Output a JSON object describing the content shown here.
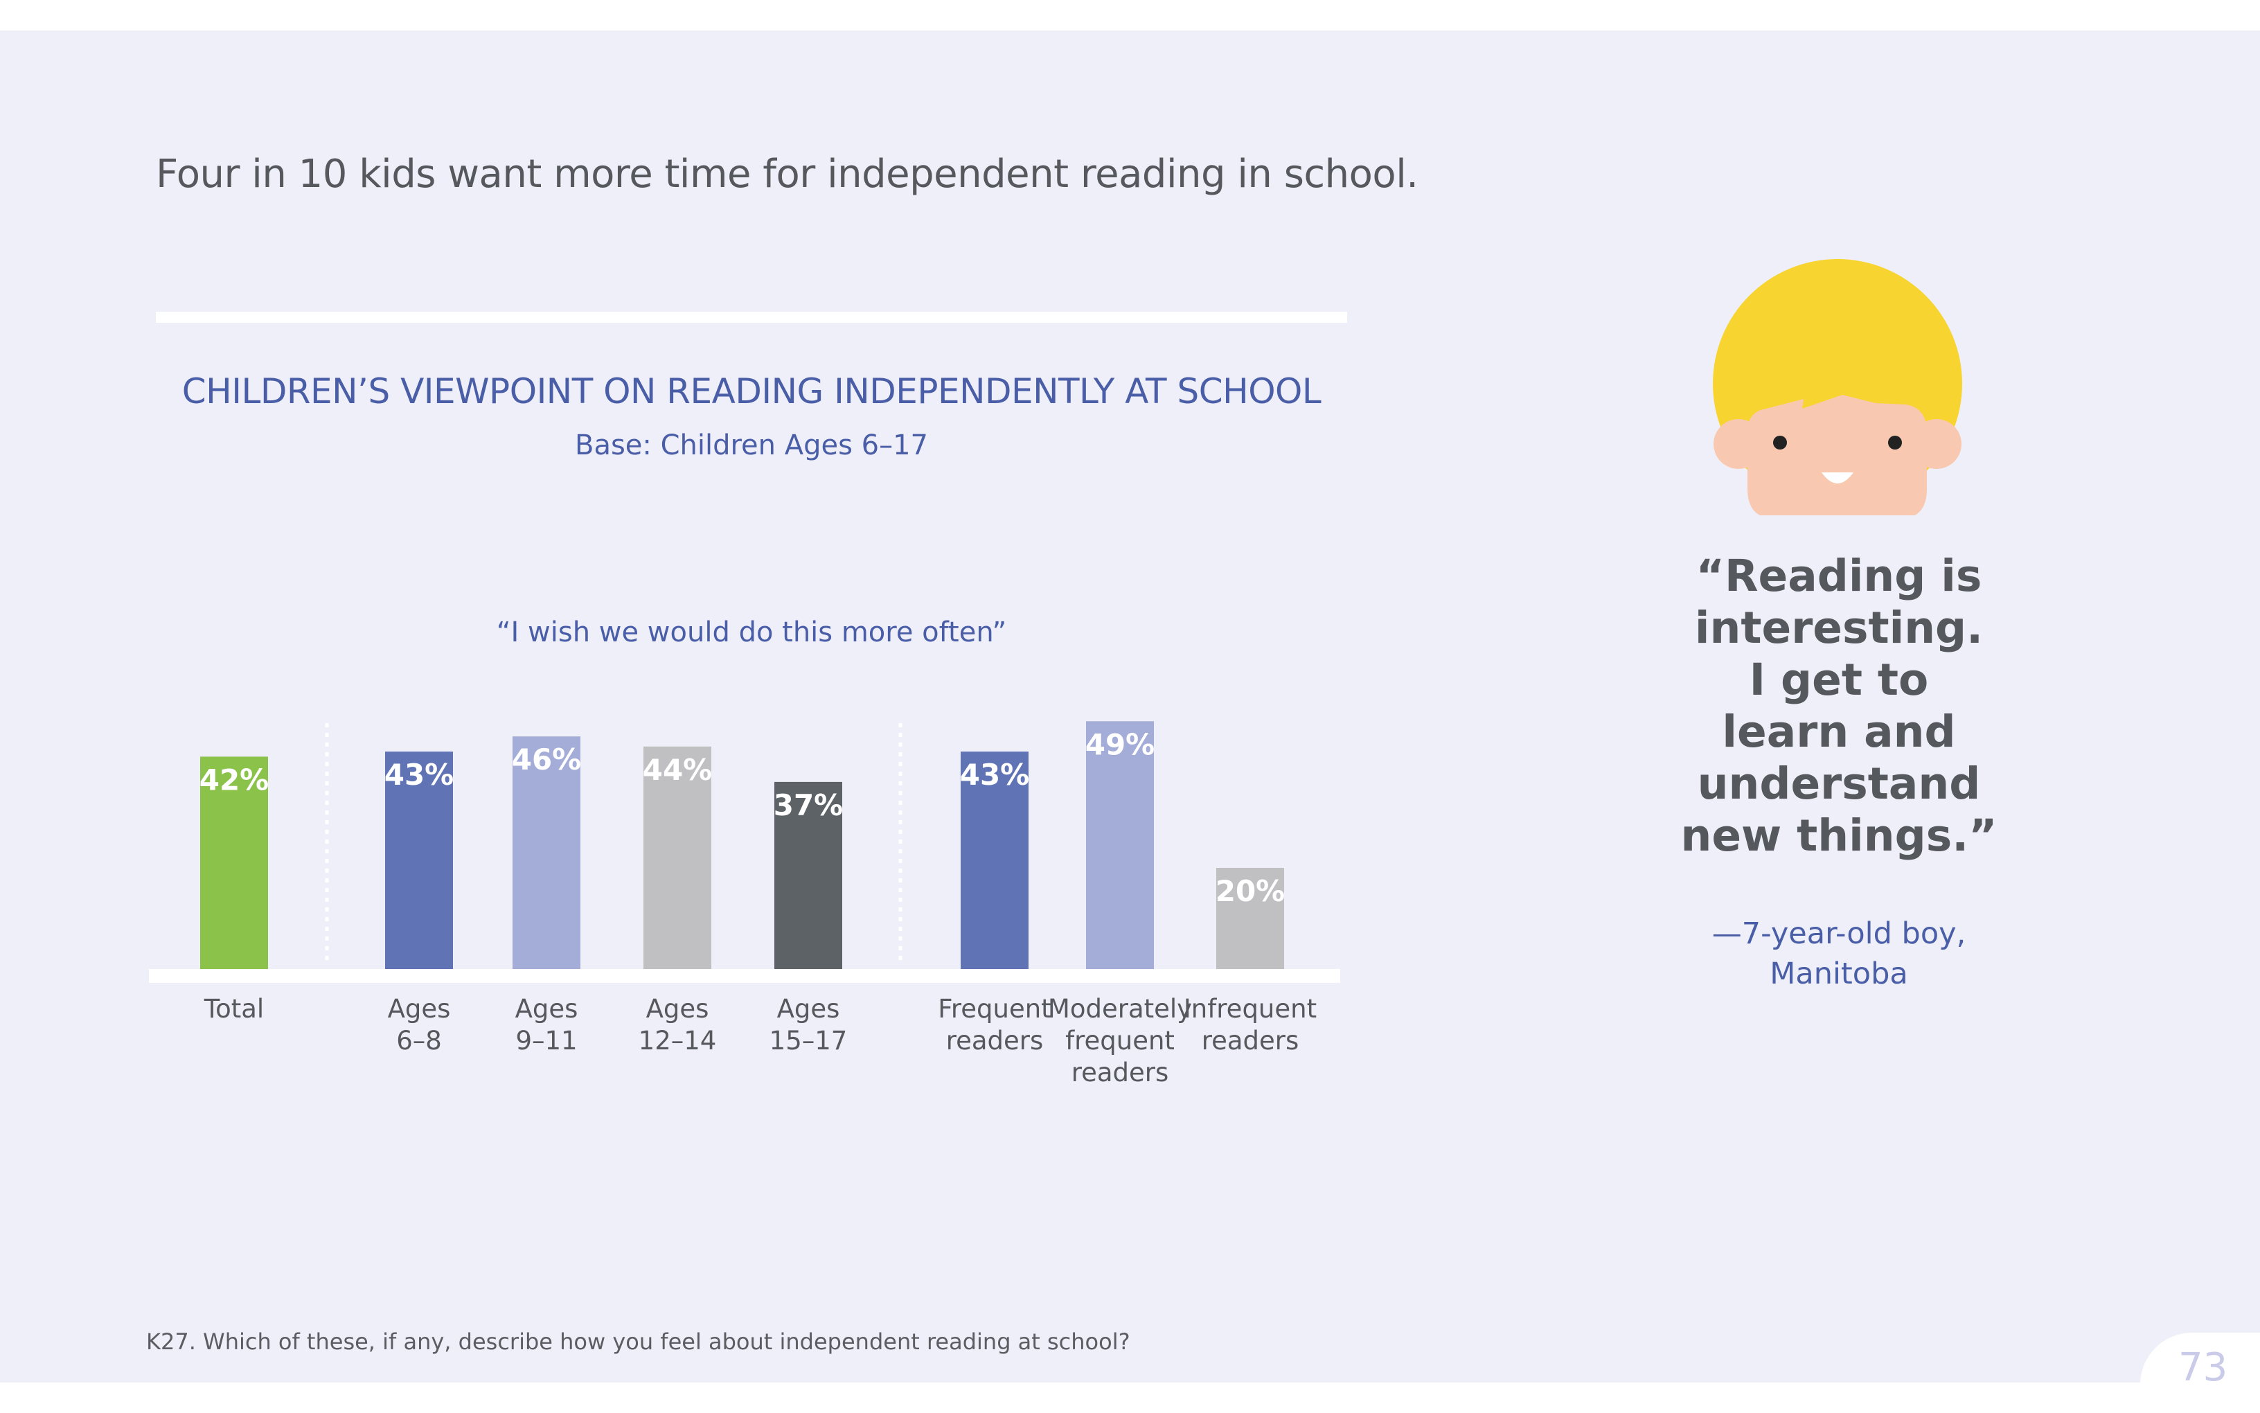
{
  "headline": "Four in 10 kids want more time for independent reading in school.",
  "chart_data": {
    "type": "bar",
    "title": "CHILDREN’S VIEWPOINT ON READING INDEPENDENTLY AT SCHOOL",
    "subtitle": "Base: Children Ages 6–17",
    "question": "“I wish we would do this more often”",
    "ylim": [
      0,
      100
    ],
    "grid": false,
    "categories": [
      [
        "Total"
      ],
      [
        "Ages",
        "6–8"
      ],
      [
        "Ages",
        "9–11"
      ],
      [
        "Ages",
        "12–14"
      ],
      [
        "Ages",
        "15–17"
      ],
      [
        "Frequent",
        "readers"
      ],
      [
        "Moderately",
        "frequent",
        "readers"
      ],
      [
        "Infrequent",
        "readers"
      ]
    ],
    "values": [
      42,
      43,
      46,
      44,
      37,
      43,
      49,
      20
    ],
    "value_labels": [
      "42%",
      "43%",
      "46%",
      "44%",
      "37%",
      "43%",
      "49%",
      "20%"
    ],
    "groups": [
      "total",
      "age",
      "age",
      "age",
      "age",
      "frequency",
      "frequency",
      "frequency"
    ],
    "colors": [
      "#8bc34a",
      "#5f73b5",
      "#a4acd8",
      "#c0bfc2",
      "#5d6266",
      "#5f73b5",
      "#a4acd8",
      "#c0bfc2"
    ]
  },
  "quote": {
    "lines": [
      "“Reading is",
      "interesting.",
      "I get to",
      "learn and",
      "understand",
      "new things.”"
    ],
    "attribution_lines": [
      "—7-year-old boy,",
      "Manitoba"
    ]
  },
  "footnote": "K27. Which of these, if any, describe how you feel about independent reading at school?",
  "page_number": "73",
  "avatar": {
    "icon": "boy-avatar-icon",
    "hair_color": "#f7d42f",
    "skin_color": "#f8c9b0"
  }
}
